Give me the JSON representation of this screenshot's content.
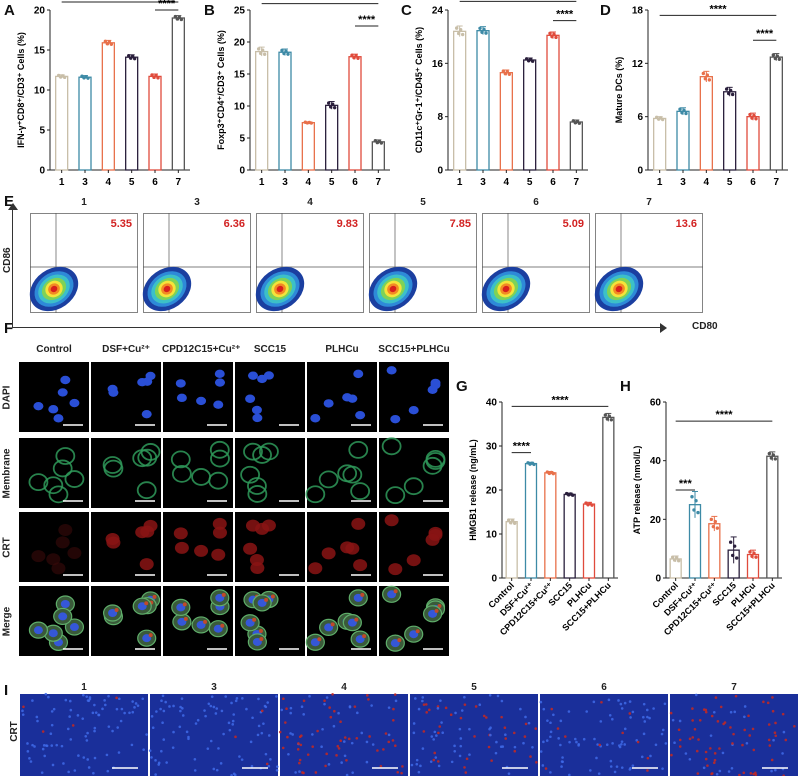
{
  "panel_letters": {
    "A": "A",
    "B": "B",
    "C": "C",
    "D": "D",
    "E": "E",
    "F": "F",
    "G": "G",
    "H": "H",
    "I": "I"
  },
  "sig": {
    "s4": "****",
    "s3": "***"
  },
  "colors": {
    "g1": "#c8bea8",
    "g3": "#3d8aa6",
    "g4": "#e8704a",
    "g5": "#2a1f3c",
    "g6": "#e04b3c",
    "g7": "#555555",
    "red_label": "#d22222"
  },
  "chart_data": [
    {
      "id": "A",
      "type": "bar",
      "categories": [
        "1",
        "3",
        "4",
        "5",
        "6",
        "7"
      ],
      "values": [
        11.7,
        11.6,
        15.9,
        14.1,
        11.7,
        19.0
      ],
      "errors": [
        0.2,
        0.2,
        0.3,
        0.3,
        0.3,
        0.3
      ],
      "ylabel": "IFN-γ⁺CD8⁺/CD3⁺ Cells (%)",
      "ylim": [
        0,
        20
      ],
      "yticks": [
        "0",
        "5",
        "10",
        "15",
        "20"
      ]
    },
    {
      "id": "B",
      "type": "bar",
      "categories": [
        "1",
        "3",
        "4",
        "5",
        "6",
        "7"
      ],
      "values": [
        18.5,
        18.4,
        7.4,
        10.1,
        17.7,
        4.4
      ],
      "errors": [
        0.7,
        0.5,
        0.1,
        0.6,
        0.4,
        0.3
      ],
      "ylabel": "Foxp3⁺CD4⁺/CD3⁺ Cells (%)",
      "ylim": [
        0,
        25
      ],
      "yticks": [
        "0",
        "5",
        "10",
        "15",
        "20",
        "25"
      ]
    },
    {
      "id": "C",
      "type": "bar",
      "categories": [
        "1",
        "3",
        "4",
        "5",
        "6",
        "7"
      ],
      "values": [
        20.8,
        20.9,
        14.6,
        16.5,
        20.2,
        7.2
      ],
      "errors": [
        0.8,
        0.6,
        0.4,
        0.3,
        0.5,
        0.3
      ],
      "ylabel": "CD11c⁺Gr-1⁺/CD45⁺ Cells (%)",
      "ylim": [
        0,
        24
      ],
      "yticks": [
        "0",
        "8",
        "16",
        "24"
      ]
    },
    {
      "id": "D",
      "type": "bar",
      "categories": [
        "1",
        "3",
        "4",
        "5",
        "6",
        "7"
      ],
      "values": [
        5.8,
        6.6,
        10.5,
        8.8,
        6.0,
        12.7
      ],
      "errors": [
        0.2,
        0.4,
        0.6,
        0.5,
        0.4,
        0.4
      ],
      "ylabel": "Mature DCs (%)",
      "ylim": [
        0,
        18
      ],
      "yticks": [
        "0",
        "6",
        "12",
        "18"
      ]
    },
    {
      "id": "G",
      "type": "bar",
      "categories": [
        "Control",
        "DSF+Cu²⁺",
        "CPD12C15+Cu²⁺",
        "SCC15",
        "PLHCu",
        "SCC15+PLHCu"
      ],
      "values": [
        12.8,
        26.0,
        23.9,
        19.0,
        16.8,
        36.5
      ],
      "errors": [
        0.6,
        0.3,
        0.3,
        0.3,
        0.4,
        0.9
      ],
      "ylabel": "HMGB1 release (ng/mL)",
      "ylim": [
        0,
        40
      ],
      "yticks": [
        "0",
        "10",
        "20",
        "30",
        "40"
      ]
    },
    {
      "id": "H",
      "type": "bar",
      "categories": [
        "Control",
        "DSF+Cu²⁺",
        "CPD12C15+Cu²⁺",
        "SCC15",
        "PLHCu",
        "SCC15+PLHCu"
      ],
      "values": [
        6.5,
        25.0,
        18.5,
        9.5,
        8.0,
        41.5
      ],
      "errors": [
        1.0,
        4.5,
        2.5,
        4.5,
        1.5,
        1.5
      ],
      "ylabel": "ATP release (nmol/L)",
      "ylim": [
        0,
        60
      ],
      "yticks": [
        "0",
        "20",
        "40",
        "60"
      ]
    }
  ],
  "flow": {
    "groups": [
      {
        "label": "1",
        "value": "5.35"
      },
      {
        "label": "3",
        "value": "6.36"
      },
      {
        "label": "4",
        "value": "9.83"
      },
      {
        "label": "5",
        "value": "7.85"
      },
      {
        "label": "6",
        "value": "5.09"
      },
      {
        "label": "7",
        "value": "13.6"
      }
    ],
    "y_axis": "CD86",
    "x_axis": "CD80"
  },
  "micro": {
    "columns": [
      "Control",
      "DSF+Cu²⁺",
      "CPD12C15+Cu²⁺",
      "SCC15",
      "PLHCu",
      "SCC15+PLHCu"
    ],
    "rows": [
      "DAPI",
      "Membrane",
      "CRT",
      "Merge"
    ]
  },
  "tissue": {
    "groups": [
      "1",
      "3",
      "4",
      "5",
      "6",
      "7"
    ],
    "row_label": "CRT"
  }
}
